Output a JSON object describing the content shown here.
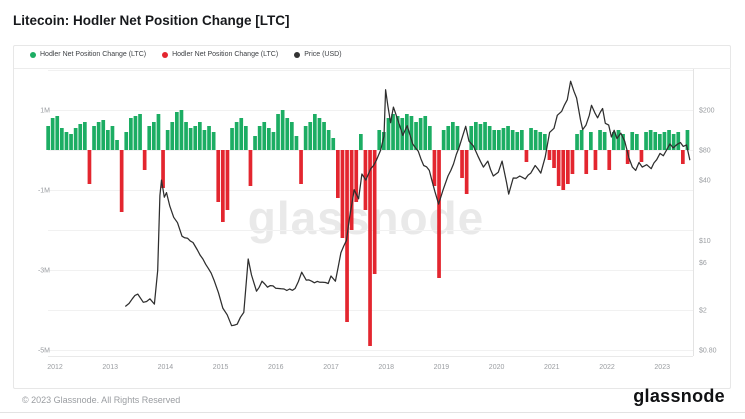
{
  "header": {
    "title": "Litecoin: Hodler Net Position Change [LTC]"
  },
  "legend": {
    "items": [
      {
        "label": "Hodler Net Position Change (LTC)",
        "color": "#1CAD63"
      },
      {
        "label": "Hodler Net Position Change (LTC)",
        "color": "#E3262F"
      },
      {
        "label": "Price (USD)",
        "color": "#333333"
      }
    ]
  },
  "chart": {
    "watermark": "glassnode"
  },
  "footer": {
    "copyright": "© 2023 Glassnode. All Rights Reserved",
    "logo_text": "glassnode"
  },
  "chart_data": {
    "type": "bar+line",
    "title": "Litecoin: Hodler Net Position Change [LTC]",
    "x_axis": {
      "years": [
        "2012",
        "2013",
        "2014",
        "2015",
        "2016",
        "2017",
        "2018",
        "2019",
        "2020",
        "2021",
        "2022",
        "2023"
      ],
      "range": [
        2011.87,
        2023.55
      ]
    },
    "y_left": {
      "label": "Hodler Net Position Change (LTC)",
      "units": "millions of LTC",
      "ticks": [
        {
          "label": "1M",
          "value_m": 1
        },
        {
          "label": "-1M",
          "value_m": -1
        },
        {
          "label": "-3M",
          "value_m": -3
        },
        {
          "label": "-5M",
          "value_m": -5
        }
      ]
    },
    "y_right": {
      "label": "Price (USD)",
      "scale": "log",
      "ticks": [
        {
          "label": "$200",
          "value": 200
        },
        {
          "label": "$80",
          "value": 80
        },
        {
          "label": "$40",
          "value": 40
        },
        {
          "label": "$10",
          "value": 10
        },
        {
          "label": "$6",
          "value": 6
        },
        {
          "label": "$2",
          "value": 2
        },
        {
          "label": "$0.80",
          "value": 0.8
        }
      ]
    },
    "colors": {
      "positive": "#1CAD63",
      "negative": "#E3262F",
      "price": "#2e2e2e",
      "watermark": "#e9e9e9",
      "grid": "#f1f1f1",
      "axis_text": "#9a9da1"
    },
    "bars": {
      "name": "Hodler Net Position Change (LTC)",
      "unit": "M LTC",
      "start_year": 2011.875,
      "step_years": 0.083333,
      "values": [
        0.6,
        0.8,
        0.85,
        0.55,
        0.45,
        0.4,
        0.55,
        0.65,
        0.7,
        -0.85,
        0.6,
        0.7,
        0.75,
        0.5,
        0.6,
        0.25,
        -1.55,
        0.45,
        0.8,
        0.85,
        0.9,
        -0.5,
        0.6,
        0.7,
        0.9,
        -0.95,
        0.5,
        0.7,
        0.95,
        1.0,
        0.7,
        0.55,
        0.6,
        0.7,
        0.5,
        0.6,
        0.45,
        -1.3,
        -1.8,
        -1.5,
        0.55,
        0.7,
        0.8,
        0.6,
        -0.9,
        0.35,
        0.6,
        0.7,
        0.55,
        0.45,
        0.9,
        1.0,
        0.8,
        0.7,
        0.35,
        -0.85,
        0.6,
        0.7,
        0.9,
        0.8,
        0.7,
        0.5,
        0.3,
        -1.2,
        -2.2,
        -4.3,
        -2.0,
        -1.3,
        0.4,
        -1.5,
        -4.9,
        -3.1,
        0.5,
        0.45,
        0.8,
        0.9,
        0.85,
        0.8,
        0.9,
        0.85,
        0.7,
        0.8,
        0.85,
        0.6,
        -0.9,
        -3.2,
        0.5,
        0.6,
        0.7,
        0.6,
        -0.7,
        -1.1,
        0.6,
        0.7,
        0.65,
        0.7,
        0.6,
        0.5,
        0.5,
        0.55,
        0.6,
        0.5,
        0.45,
        0.5,
        -0.3,
        0.55,
        0.5,
        0.45,
        0.4,
        -0.25,
        -0.45,
        -0.9,
        -1.0,
        -0.85,
        -0.6,
        0.4,
        0.5,
        -0.6,
        0.45,
        -0.5,
        0.5,
        0.45,
        -0.5,
        0.45,
        0.5,
        0.4,
        -0.35,
        0.45,
        0.4,
        -0.3,
        0.45,
        0.5,
        0.45,
        0.4,
        0.45,
        0.5,
        0.4,
        0.45,
        -0.35,
        0.5
      ]
    },
    "price_line": {
      "name": "Price (USD)",
      "points": [
        [
          2013.28,
          2.2
        ],
        [
          2013.4,
          2.6
        ],
        [
          2013.5,
          2.9
        ],
        [
          2013.6,
          2.4
        ],
        [
          2013.72,
          2.6
        ],
        [
          2013.8,
          2.3
        ],
        [
          2013.86,
          5
        ],
        [
          2013.9,
          28
        ],
        [
          2013.93,
          40
        ],
        [
          2013.98,
          27
        ],
        [
          2014.02,
          30
        ],
        [
          2014.08,
          22
        ],
        [
          2014.15,
          17
        ],
        [
          2014.22,
          15
        ],
        [
          2014.3,
          11
        ],
        [
          2014.4,
          10.5
        ],
        [
          2014.5,
          9.5
        ],
        [
          2014.58,
          8
        ],
        [
          2014.68,
          6.5
        ],
        [
          2014.78,
          5.2
        ],
        [
          2014.88,
          4
        ],
        [
          2014.96,
          3
        ],
        [
          2015.04,
          2.1
        ],
        [
          2015.12,
          1.8
        ],
        [
          2015.2,
          1.4
        ],
        [
          2015.3,
          1.45
        ],
        [
          2015.42,
          1.9
        ],
        [
          2015.5,
          6.5
        ],
        [
          2015.56,
          4.5
        ],
        [
          2015.65,
          3.1
        ],
        [
          2015.75,
          3.9
        ],
        [
          2015.85,
          3.4
        ],
        [
          2015.95,
          3.5
        ],
        [
          2016.05,
          3.3
        ],
        [
          2016.2,
          3.15
        ],
        [
          2016.35,
          3.3
        ],
        [
          2016.47,
          4.8
        ],
        [
          2016.55,
          4
        ],
        [
          2016.65,
          3.9
        ],
        [
          2016.8,
          3.8
        ],
        [
          2016.95,
          3.7
        ],
        [
          2017.0,
          4.4
        ],
        [
          2017.08,
          3.9
        ],
        [
          2017.18,
          7.5
        ],
        [
          2017.28,
          10
        ],
        [
          2017.33,
          16
        ],
        [
          2017.42,
          32
        ],
        [
          2017.5,
          26
        ],
        [
          2017.56,
          46
        ],
        [
          2017.63,
          40
        ],
        [
          2017.72,
          52
        ],
        [
          2017.82,
          63
        ],
        [
          2017.9,
          80
        ],
        [
          2017.96,
          110
        ],
        [
          2017.99,
          320
        ],
        [
          2018.03,
          220
        ],
        [
          2018.08,
          150
        ],
        [
          2018.13,
          215
        ],
        [
          2018.22,
          155
        ],
        [
          2018.3,
          112
        ],
        [
          2018.38,
          140
        ],
        [
          2018.48,
          92
        ],
        [
          2018.58,
          78
        ],
        [
          2018.68,
          56
        ],
        [
          2018.78,
          50
        ],
        [
          2018.88,
          31
        ],
        [
          2018.95,
          23
        ],
        [
          2019.03,
          32
        ],
        [
          2019.12,
          44
        ],
        [
          2019.22,
          58
        ],
        [
          2019.32,
          85
        ],
        [
          2019.44,
          138
        ],
        [
          2019.5,
          98
        ],
        [
          2019.58,
          88
        ],
        [
          2019.66,
          70
        ],
        [
          2019.76,
          54
        ],
        [
          2019.84,
          62
        ],
        [
          2019.94,
          44
        ],
        [
          2020.03,
          48
        ],
        [
          2020.1,
          62
        ],
        [
          2020.18,
          38
        ],
        [
          2020.22,
          29
        ],
        [
          2020.3,
          42
        ],
        [
          2020.42,
          44
        ],
        [
          2020.52,
          41
        ],
        [
          2020.62,
          47
        ],
        [
          2020.7,
          56
        ],
        [
          2020.8,
          47
        ],
        [
          2020.88,
          68
        ],
        [
          2020.96,
          120
        ],
        [
          2021.04,
          132
        ],
        [
          2021.1,
          178
        ],
        [
          2021.18,
          195
        ],
        [
          2021.28,
          255
        ],
        [
          2021.34,
          390
        ],
        [
          2021.4,
          310
        ],
        [
          2021.45,
          265
        ],
        [
          2021.52,
          160
        ],
        [
          2021.56,
          128
        ],
        [
          2021.62,
          142
        ],
        [
          2021.68,
          178
        ],
        [
          2021.72,
          224
        ],
        [
          2021.78,
          188
        ],
        [
          2021.83,
          168
        ],
        [
          2021.88,
          192
        ],
        [
          2021.92,
          208
        ],
        [
          2021.97,
          148
        ],
        [
          2022.03,
          142
        ],
        [
          2022.08,
          108
        ],
        [
          2022.13,
          126
        ],
        [
          2022.18,
          104
        ],
        [
          2022.25,
          118
        ],
        [
          2022.32,
          98
        ],
        [
          2022.4,
          66
        ],
        [
          2022.46,
          54
        ],
        [
          2022.52,
          50
        ],
        [
          2022.58,
          60
        ],
        [
          2022.64,
          54
        ],
        [
          2022.72,
          57
        ],
        [
          2022.8,
          52
        ],
        [
          2022.9,
          64
        ],
        [
          2022.96,
          74
        ],
        [
          2023.02,
          70
        ],
        [
          2023.08,
          80
        ],
        [
          2023.14,
          92
        ],
        [
          2023.2,
          84
        ],
        [
          2023.27,
          91
        ],
        [
          2023.33,
          95
        ],
        [
          2023.38,
          87
        ],
        [
          2023.44,
          90
        ],
        [
          2023.5,
          64
        ]
      ]
    }
  }
}
